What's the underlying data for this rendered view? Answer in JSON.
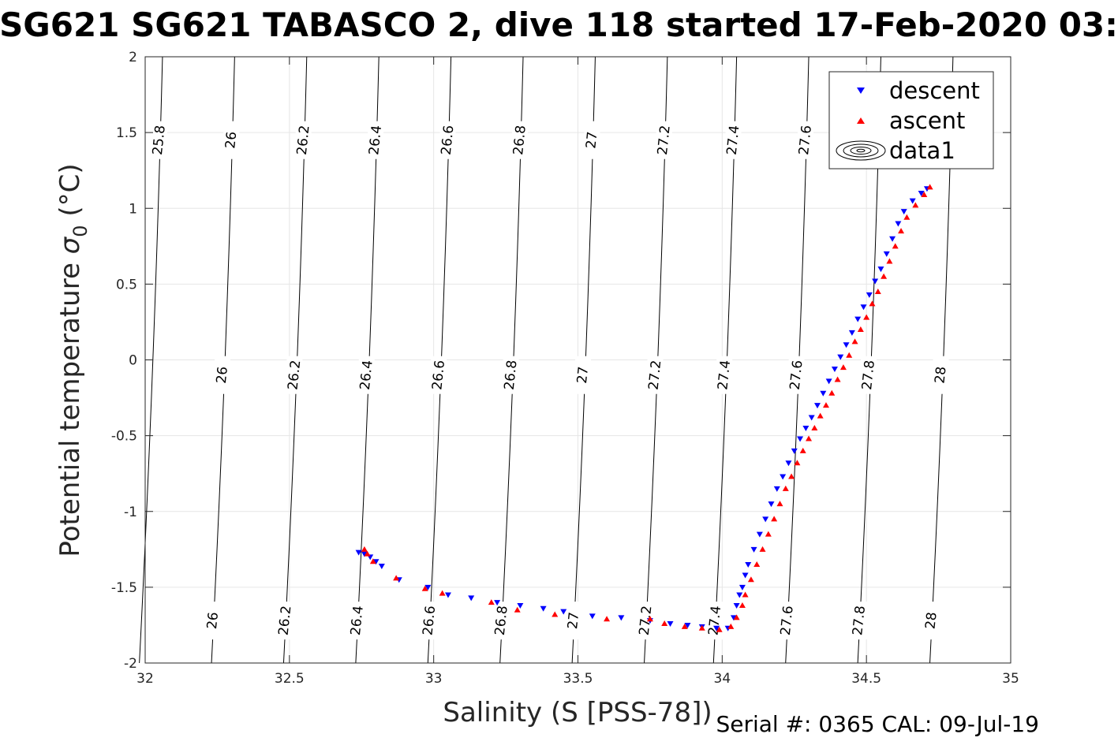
{
  "chart_data": {
    "type": "scatter",
    "title": "SG621 SG621 TABASCO 2, dive 118 started 17-Feb-2020 03:",
    "xlabel": "Salinity (S [PSS-78])",
    "ylabel_main": "Potential temperature ",
    "ylabel_sigma": "σ",
    "ylabel_sub": "0",
    "ylabel_unit": " (°C)",
    "xlim": [
      32,
      35
    ],
    "ylim": [
      -2,
      2
    ],
    "xticks": [
      32,
      32.5,
      33,
      33.5,
      34,
      34.5,
      35
    ],
    "xtick_labels": [
      "32",
      "32.5",
      "33",
      "33.5",
      "34",
      "34.5",
      "35"
    ],
    "yticks": [
      -2,
      -1.5,
      -1,
      -0.5,
      0,
      0.5,
      1,
      1.5,
      2
    ],
    "ytick_labels": [
      "-2",
      "-1.5",
      "-1",
      "-0.5",
      "0",
      "0.5",
      "1",
      "1.5",
      "2"
    ],
    "grid": true,
    "legend_position": "top-right",
    "legend": [
      "descent",
      "ascent",
      "data1"
    ],
    "colors": {
      "descent": "#0000ff",
      "ascent": "#ff0000",
      "contour": "#000000",
      "grid": "#e6e6e6"
    },
    "contours": [
      {
        "level": "25.8",
        "x_top": 32.06,
        "x_bottom": 32.04
      },
      {
        "level": "26",
        "x_top": 32.31,
        "x_bottom": 32.29
      },
      {
        "level": "26.2",
        "x_top": 32.56,
        "x_bottom": 32.54
      },
      {
        "level": "26.4",
        "x_top": 32.81,
        "x_bottom": 32.79
      },
      {
        "level": "26.6",
        "x_top": 33.06,
        "x_bottom": 33.04
      },
      {
        "level": "26.8",
        "x_top": 33.31,
        "x_bottom": 33.29
      },
      {
        "level": "27",
        "x_top": 33.56,
        "x_bottom": 33.54
      },
      {
        "level": "27.2",
        "x_top": 33.81,
        "x_bottom": 33.79
      },
      {
        "level": "27.4",
        "x_top": 34.05,
        "x_bottom": 34.03
      },
      {
        "level": "27.6",
        "x_top": 34.3,
        "x_bottom": 34.28
      },
      {
        "level": "27.8",
        "x_top": 34.55,
        "x_bottom": 34.53
      },
      {
        "level": "28",
        "x_top": 34.8,
        "x_bottom": 34.78
      }
    ],
    "series": [
      {
        "name": "descent",
        "marker": "down-triangle",
        "points": [
          [
            32.74,
            -1.27
          ],
          [
            32.76,
            -1.28
          ],
          [
            32.78,
            -1.3
          ],
          [
            32.8,
            -1.33
          ],
          [
            32.82,
            -1.36
          ],
          [
            32.88,
            -1.45
          ],
          [
            32.98,
            -1.5
          ],
          [
            33.05,
            -1.55
          ],
          [
            33.13,
            -1.57
          ],
          [
            33.22,
            -1.6
          ],
          [
            33.3,
            -1.62
          ],
          [
            33.38,
            -1.64
          ],
          [
            33.45,
            -1.66
          ],
          [
            33.55,
            -1.69
          ],
          [
            33.65,
            -1.7
          ],
          [
            33.75,
            -1.72
          ],
          [
            33.82,
            -1.74
          ],
          [
            33.88,
            -1.75
          ],
          [
            33.93,
            -1.76
          ],
          [
            33.98,
            -1.77
          ],
          [
            34.02,
            -1.77
          ],
          [
            34.04,
            -1.7
          ],
          [
            34.05,
            -1.62
          ],
          [
            34.06,
            -1.55
          ],
          [
            34.07,
            -1.5
          ],
          [
            34.08,
            -1.42
          ],
          [
            34.09,
            -1.35
          ],
          [
            34.11,
            -1.25
          ],
          [
            34.13,
            -1.15
          ],
          [
            34.15,
            -1.05
          ],
          [
            34.17,
            -0.95
          ],
          [
            34.19,
            -0.85
          ],
          [
            34.21,
            -0.77
          ],
          [
            34.23,
            -0.68
          ],
          [
            34.25,
            -0.6
          ],
          [
            34.27,
            -0.52
          ],
          [
            34.29,
            -0.45
          ],
          [
            34.31,
            -0.38
          ],
          [
            34.33,
            -0.3
          ],
          [
            34.35,
            -0.22
          ],
          [
            34.37,
            -0.14
          ],
          [
            34.39,
            -0.06
          ],
          [
            34.41,
            0.02
          ],
          [
            34.43,
            0.1
          ],
          [
            34.45,
            0.18
          ],
          [
            34.47,
            0.27
          ],
          [
            34.49,
            0.35
          ],
          [
            34.51,
            0.43
          ],
          [
            34.53,
            0.52
          ],
          [
            34.55,
            0.6
          ],
          [
            34.57,
            0.7
          ],
          [
            34.59,
            0.8
          ],
          [
            34.61,
            0.9
          ],
          [
            34.63,
            0.98
          ],
          [
            34.66,
            1.05
          ],
          [
            34.69,
            1.1
          ],
          [
            34.71,
            1.13
          ]
        ]
      },
      {
        "name": "ascent",
        "marker": "up-triangle",
        "points": [
          [
            32.76,
            -1.25
          ],
          [
            32.77,
            -1.28
          ],
          [
            32.79,
            -1.33
          ],
          [
            32.87,
            -1.44
          ],
          [
            32.97,
            -1.51
          ],
          [
            33.03,
            -1.54
          ],
          [
            33.2,
            -1.6
          ],
          [
            33.29,
            -1.65
          ],
          [
            33.42,
            -1.68
          ],
          [
            33.6,
            -1.71
          ],
          [
            33.75,
            -1.71
          ],
          [
            33.8,
            -1.74
          ],
          [
            33.87,
            -1.76
          ],
          [
            33.93,
            -1.77
          ],
          [
            33.99,
            -1.78
          ],
          [
            34.03,
            -1.76
          ],
          [
            34.05,
            -1.7
          ],
          [
            34.07,
            -1.62
          ],
          [
            34.08,
            -1.55
          ],
          [
            34.1,
            -1.45
          ],
          [
            34.12,
            -1.35
          ],
          [
            34.14,
            -1.25
          ],
          [
            34.16,
            -1.15
          ],
          [
            34.18,
            -1.05
          ],
          [
            34.2,
            -0.95
          ],
          [
            34.22,
            -0.85
          ],
          [
            34.24,
            -0.77
          ],
          [
            34.26,
            -0.68
          ],
          [
            34.28,
            -0.6
          ],
          [
            34.3,
            -0.52
          ],
          [
            34.32,
            -0.45
          ],
          [
            34.34,
            -0.37
          ],
          [
            34.36,
            -0.3
          ],
          [
            34.38,
            -0.22
          ],
          [
            34.4,
            -0.13
          ],
          [
            34.42,
            -0.05
          ],
          [
            34.44,
            0.03
          ],
          [
            34.46,
            0.12
          ],
          [
            34.48,
            0.2
          ],
          [
            34.5,
            0.28
          ],
          [
            34.52,
            0.37
          ],
          [
            34.54,
            0.45
          ],
          [
            34.56,
            0.55
          ],
          [
            34.58,
            0.65
          ],
          [
            34.6,
            0.75
          ],
          [
            34.62,
            0.85
          ],
          [
            34.64,
            0.94
          ],
          [
            34.67,
            1.02
          ],
          [
            34.7,
            1.09
          ],
          [
            34.72,
            1.14
          ]
        ]
      }
    ]
  },
  "footer": {
    "serial": "Serial #: 0365  CAL: 09-Jul-19"
  }
}
